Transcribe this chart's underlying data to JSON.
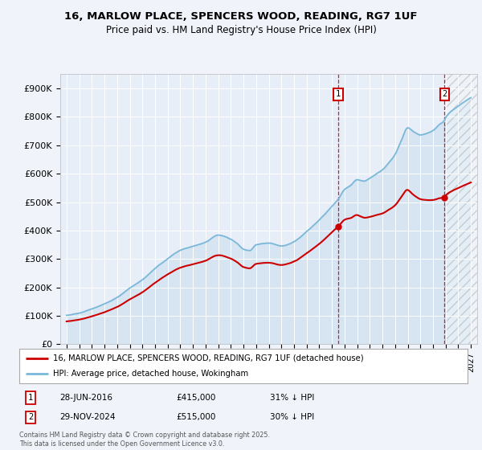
{
  "title_line1": "16, MARLOW PLACE, SPENCERS WOOD, READING, RG7 1UF",
  "title_line2": "Price paid vs. HM Land Registry's House Price Index (HPI)",
  "ylim": [
    0,
    950000
  ],
  "yticks": [
    0,
    100000,
    200000,
    300000,
    400000,
    500000,
    600000,
    700000,
    800000,
    900000
  ],
  "ytick_labels": [
    "£0",
    "£100K",
    "£200K",
    "£300K",
    "£400K",
    "£500K",
    "£600K",
    "£700K",
    "£800K",
    "£900K"
  ],
  "hpi_color": "#7ab8d9",
  "price_color": "#cc0000",
  "annotation1_date": "28-JUN-2016",
  "annotation1_price": "£415,000",
  "annotation1_hpi": "31% ↓ HPI",
  "annotation2_date": "29-NOV-2024",
  "annotation2_price": "£515,000",
  "annotation2_hpi": "30% ↓ HPI",
  "legend_property": "16, MARLOW PLACE, SPENCERS WOOD, READING, RG7 1UF (detached house)",
  "legend_hpi": "HPI: Average price, detached house, Wokingham",
  "footnote": "Contains HM Land Registry data © Crown copyright and database right 2025.\nThis data is licensed under the Open Government Licence v3.0.",
  "background_color": "#f0f4fa",
  "plot_bg_color": "#e8eef8",
  "sale1_x": 2016.49,
  "sale1_y": 415000,
  "sale2_x": 2024.91,
  "sale2_y": 515000,
  "xlim_start": 1994.5,
  "xlim_end": 2027.5
}
